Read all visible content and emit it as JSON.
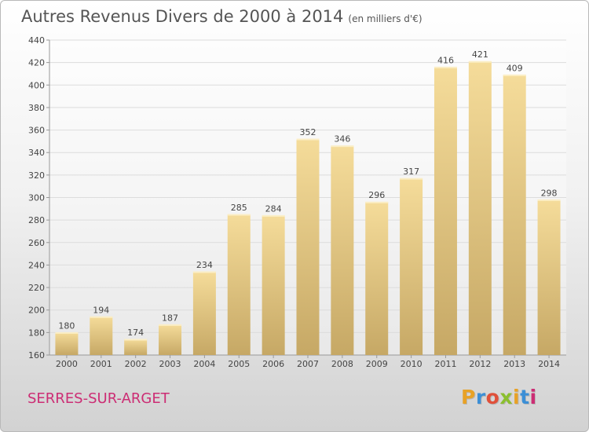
{
  "header": {
    "title": "Autres Revenus Divers de 2000 à 2014",
    "unit": "(en milliers d'€)"
  },
  "footer": {
    "commune": "SERRES-SUR-ARGET",
    "logo": [
      "P",
      "r",
      "o",
      "x",
      "i",
      "t",
      "i"
    ],
    "logo_colors": [
      "#e8a226",
      "#3c8fd6",
      "#e0503a",
      "#8bbf2f",
      "#e8a226",
      "#3c8fd6",
      "#cc2d74"
    ]
  },
  "chart_data": {
    "type": "bar",
    "title": "Autres Revenus Divers de 2000 à 2014",
    "subtitle": "(en milliers d'€)",
    "categories": [
      "2000",
      "2001",
      "2002",
      "2003",
      "2004",
      "2005",
      "2006",
      "2007",
      "2008",
      "2009",
      "2010",
      "2011",
      "2012",
      "2013",
      "2014"
    ],
    "values": [
      180,
      194,
      174,
      187,
      234,
      285,
      284,
      352,
      346,
      296,
      317,
      416,
      421,
      409,
      298
    ],
    "ylim": [
      160,
      440
    ],
    "yticks": [
      160,
      180,
      200,
      220,
      240,
      260,
      280,
      300,
      320,
      340,
      360,
      380,
      400,
      420,
      440
    ],
    "grid": true,
    "bar_color_top": "#f5dc9a",
    "bar_color_bottom": "#c6a865",
    "grid_color": "#dcdcdc"
  }
}
